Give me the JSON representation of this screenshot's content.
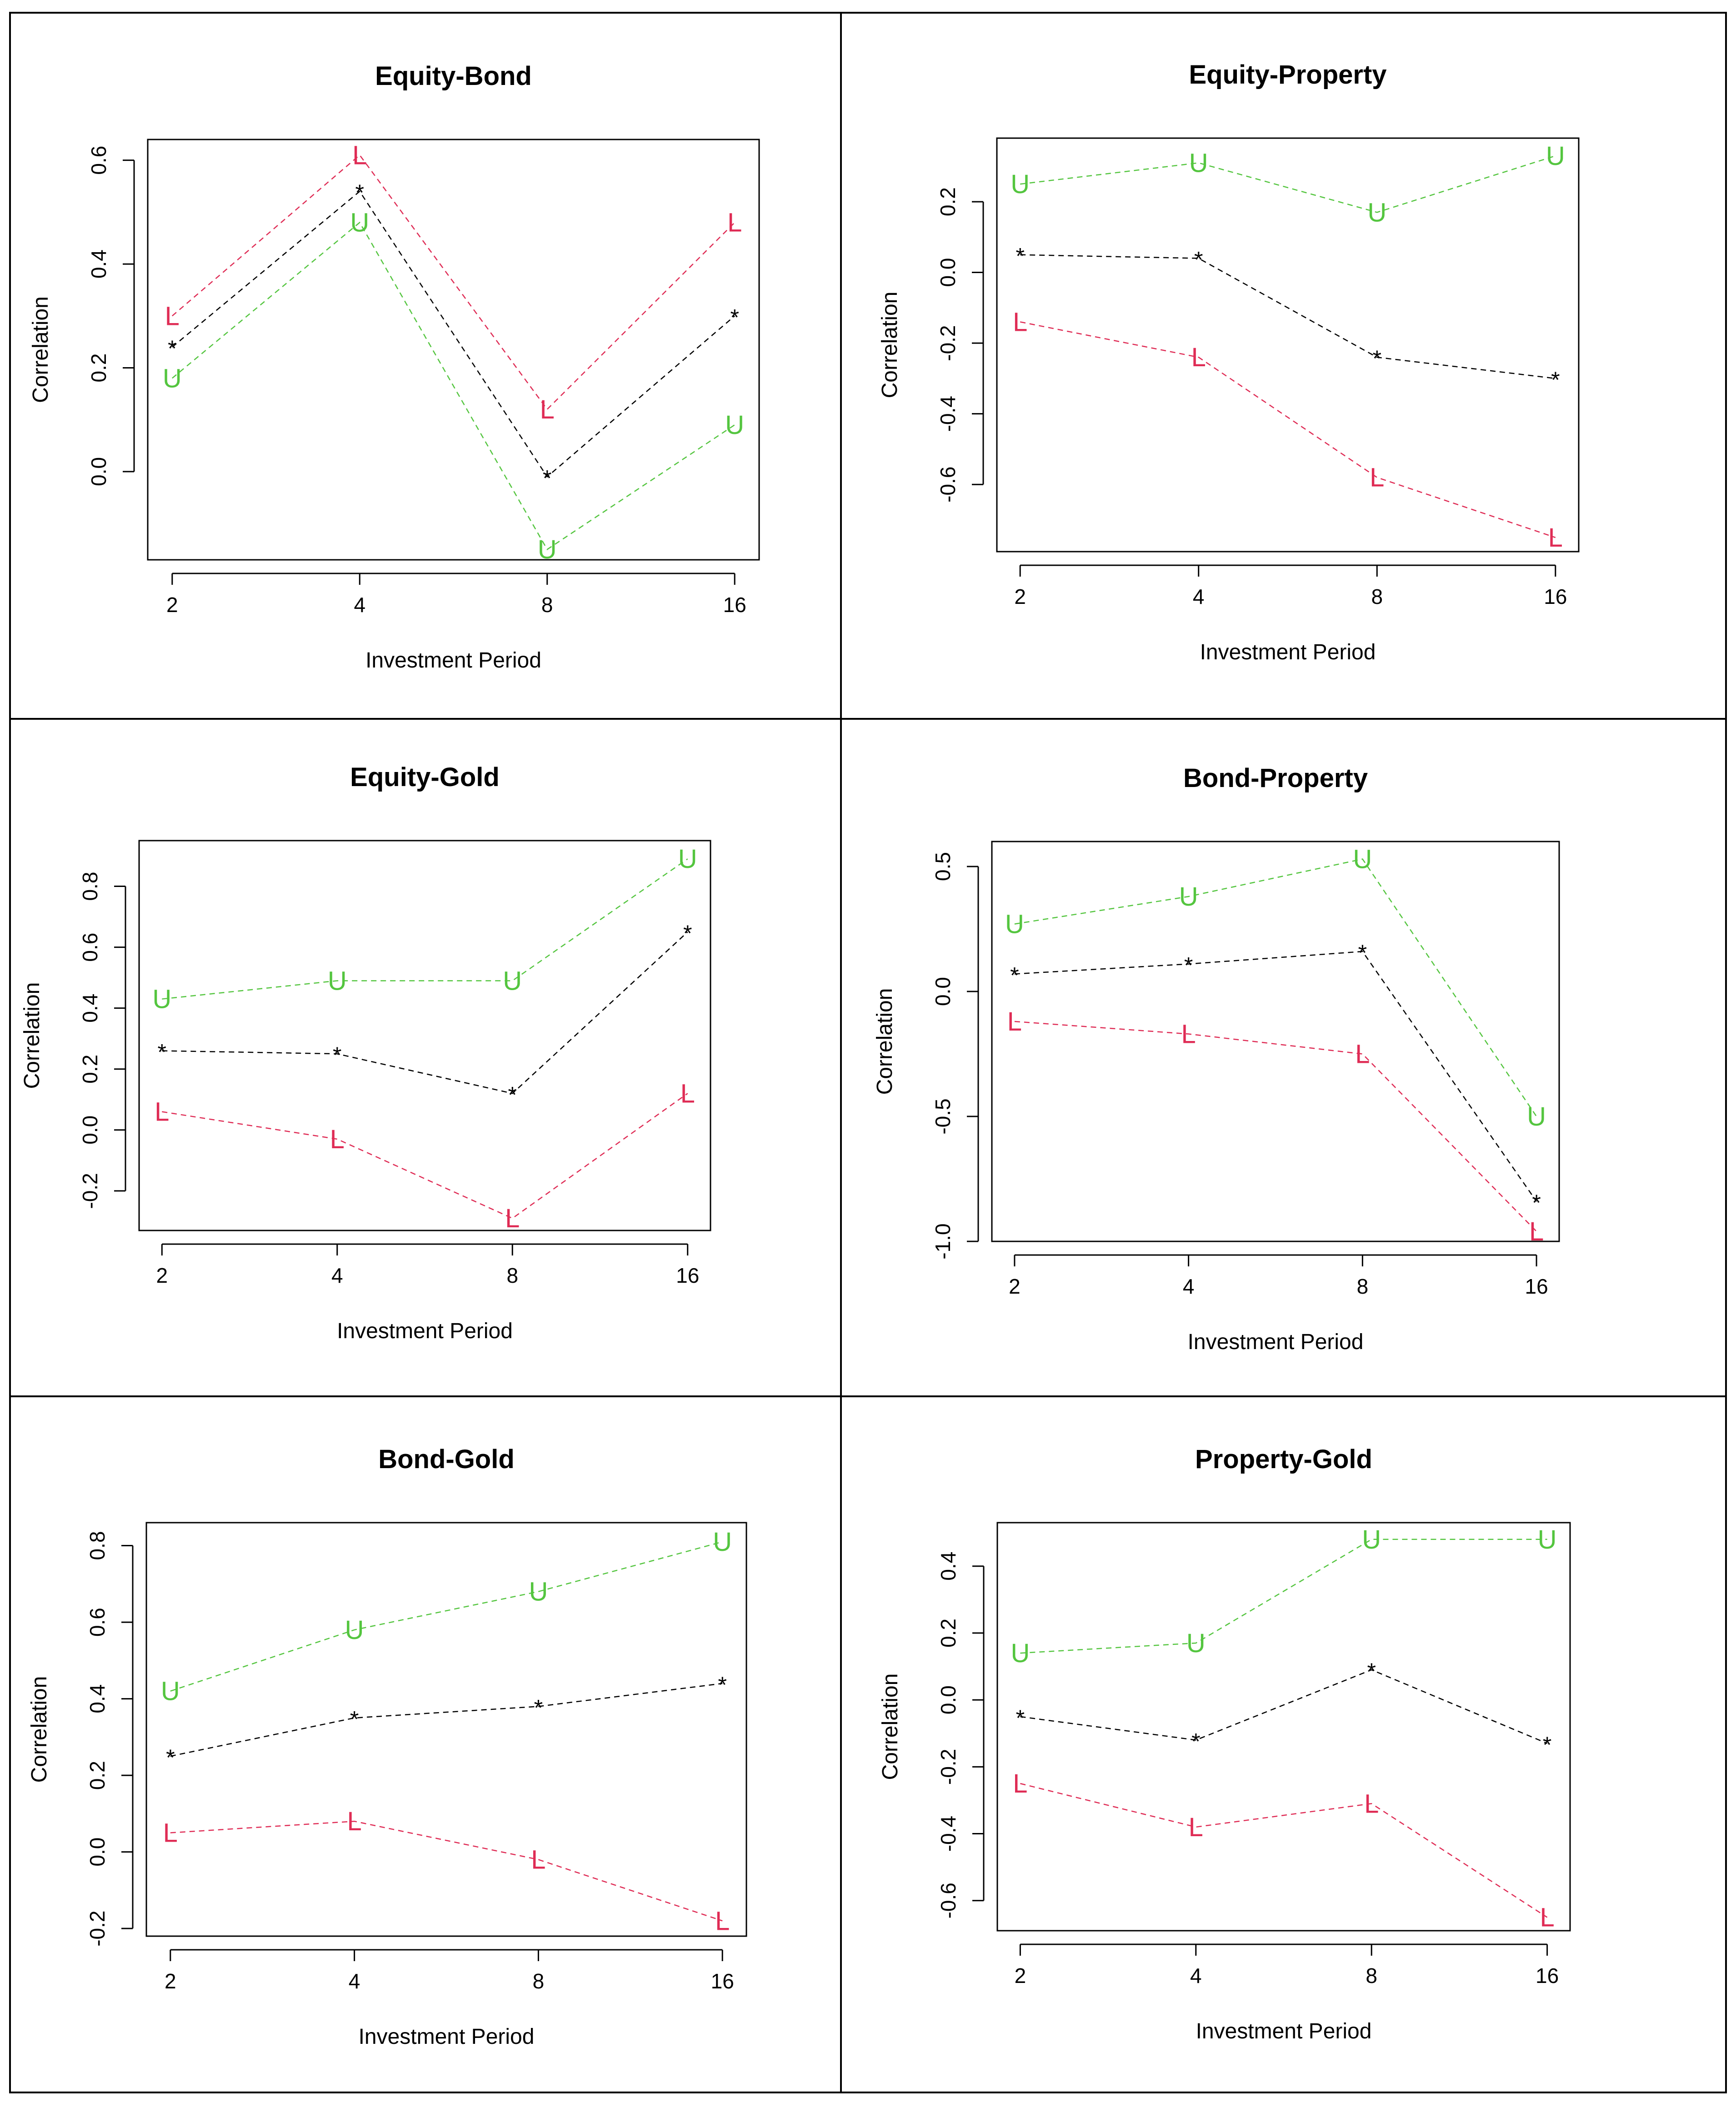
{
  "colors": {
    "upper": "#54c53f",
    "lower": "#df2c55",
    "mid": "#000000",
    "frame": "#000000"
  },
  "chart_data": [
    {
      "type": "line",
      "title": "Equity-Bond",
      "xlabel": "Investment Period",
      "ylabel": "Correlation",
      "categories": [
        "2",
        "4",
        "8",
        "16"
      ],
      "yticks": [
        "0.0",
        "0.2",
        "0.4",
        "0.6"
      ],
      "ylim": [
        -0.17,
        0.64
      ],
      "series": [
        {
          "name": "L",
          "marker": "L",
          "role": "lower",
          "values": [
            0.3,
            0.61,
            0.12,
            0.48
          ]
        },
        {
          "name": "*",
          "marker": "*",
          "role": "mid",
          "values": [
            0.24,
            0.54,
            -0.01,
            0.3
          ]
        },
        {
          "name": "U",
          "marker": "U",
          "role": "upper",
          "values": [
            0.18,
            0.48,
            -0.15,
            0.09
          ]
        }
      ]
    },
    {
      "type": "line",
      "title": "Equity-Property",
      "xlabel": "Investment Period",
      "ylabel": "Correlation",
      "categories": [
        "2",
        "4",
        "8",
        "16"
      ],
      "yticks": [
        "-0.6",
        "-0.4",
        "-0.2",
        "0.0",
        "0.2"
      ],
      "ylim": [
        -0.79,
        0.38
      ],
      "series": [
        {
          "name": "U",
          "marker": "U",
          "role": "upper",
          "values": [
            0.25,
            0.31,
            0.17,
            0.33
          ]
        },
        {
          "name": "*",
          "marker": "*",
          "role": "mid",
          "values": [
            0.05,
            0.04,
            -0.24,
            -0.3
          ]
        },
        {
          "name": "L",
          "marker": "L",
          "role": "lower",
          "values": [
            -0.14,
            -0.24,
            -0.58,
            -0.75
          ]
        }
      ]
    },
    {
      "type": "line",
      "title": "Equity-Gold",
      "xlabel": "Investment Period",
      "ylabel": "Correlation",
      "categories": [
        "2",
        "4",
        "8",
        "16"
      ],
      "yticks": [
        "-0.2",
        "0.0",
        "0.2",
        "0.4",
        "0.6",
        "0.8"
      ],
      "ylim": [
        -0.33,
        0.95
      ],
      "series": [
        {
          "name": "U",
          "marker": "U",
          "role": "upper",
          "values": [
            0.43,
            0.49,
            0.49,
            0.89
          ]
        },
        {
          "name": "*",
          "marker": "*",
          "role": "mid",
          "values": [
            0.26,
            0.25,
            0.12,
            0.65
          ]
        },
        {
          "name": "L",
          "marker": "L",
          "role": "lower",
          "values": [
            0.06,
            -0.03,
            -0.29,
            0.12
          ]
        }
      ]
    },
    {
      "type": "line",
      "title": "Bond-Property",
      "xlabel": "Investment Period",
      "ylabel": "Correlation",
      "categories": [
        "2",
        "4",
        "8",
        "16"
      ],
      "yticks": [
        "-1.0",
        "-0.5",
        "0.0",
        "0.5"
      ],
      "ylim": [
        -1.0,
        0.6
      ],
      "series": [
        {
          "name": "U",
          "marker": "U",
          "role": "upper",
          "values": [
            0.27,
            0.38,
            0.53,
            -0.5
          ]
        },
        {
          "name": "*",
          "marker": "*",
          "role": "mid",
          "values": [
            0.07,
            0.11,
            0.16,
            -0.84
          ]
        },
        {
          "name": "L",
          "marker": "L",
          "role": "lower",
          "values": [
            -0.12,
            -0.17,
            -0.25,
            -0.96
          ]
        }
      ]
    },
    {
      "type": "line",
      "title": "Bond-Gold",
      "xlabel": "Investment Period",
      "ylabel": "Correlation",
      "categories": [
        "2",
        "4",
        "8",
        "16"
      ],
      "yticks": [
        "-0.2",
        "0.0",
        "0.2",
        "0.4",
        "0.6",
        "0.8"
      ],
      "ylim": [
        -0.22,
        0.86
      ],
      "series": [
        {
          "name": "U",
          "marker": "U",
          "role": "upper",
          "values": [
            0.42,
            0.58,
            0.68,
            0.81
          ]
        },
        {
          "name": "*",
          "marker": "*",
          "role": "mid",
          "values": [
            0.25,
            0.35,
            0.38,
            0.44
          ]
        },
        {
          "name": "L",
          "marker": "L",
          "role": "lower",
          "values": [
            0.05,
            0.08,
            -0.02,
            -0.18
          ]
        }
      ]
    },
    {
      "type": "line",
      "title": "Property-Gold",
      "xlabel": "Investment Period",
      "ylabel": "Correlation",
      "categories": [
        "2",
        "4",
        "8",
        "16"
      ],
      "yticks": [
        "-0.6",
        "-0.4",
        "-0.2",
        "0.0",
        "0.2",
        "0.4"
      ],
      "ylim": [
        -0.69,
        0.53
      ],
      "series": [
        {
          "name": "U",
          "marker": "U",
          "role": "upper",
          "values": [
            0.14,
            0.17,
            0.48,
            0.48
          ]
        },
        {
          "name": "*",
          "marker": "*",
          "role": "mid",
          "values": [
            -0.05,
            -0.12,
            0.09,
            -0.13
          ]
        },
        {
          "name": "L",
          "marker": "L",
          "role": "lower",
          "values": [
            -0.25,
            -0.38,
            -0.31,
            -0.65
          ]
        }
      ]
    }
  ]
}
